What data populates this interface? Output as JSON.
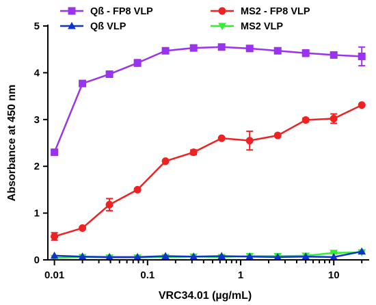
{
  "chart_data": {
    "type": "line",
    "title": "",
    "xlabel": "VRC34.01 (µg/mL)",
    "ylabel": "Absorbance at 450 nm",
    "xscale": "log",
    "xlim": [
      0.0085,
      24
    ],
    "ylim": [
      0,
      5
    ],
    "x_ticks": [
      0.01,
      0.1,
      1,
      10
    ],
    "x_tick_labels": [
      "0.01",
      "0.1",
      "1",
      "10"
    ],
    "y_ticks": [
      0,
      1,
      2,
      3,
      4,
      5
    ],
    "y_tick_labels": [
      "0",
      "1",
      "2",
      "3",
      "4",
      "5"
    ],
    "grid": false,
    "legend_position": "top",
    "x": [
      0.01,
      0.02,
      0.039,
      0.078,
      0.156,
      0.3125,
      0.625,
      1.25,
      2.5,
      5,
      10,
      20
    ],
    "series": [
      {
        "name": "Qß - FP8 VLP",
        "color": "#9933ee",
        "marker": "square",
        "values": [
          2.3,
          3.77,
          3.97,
          4.21,
          4.47,
          4.53,
          4.55,
          4.52,
          4.47,
          4.42,
          4.38,
          4.35
        ],
        "errors": [
          0.02,
          0.06,
          0.03,
          0.07,
          0.03,
          0.02,
          0.02,
          0.02,
          0.02,
          0.07,
          0.03,
          0.2
        ]
      },
      {
        "name": "MS2 - FP8 VLP",
        "color": "#ee2222",
        "marker": "circle",
        "values": [
          0.5,
          0.68,
          1.18,
          1.5,
          2.11,
          2.3,
          2.6,
          2.55,
          2.66,
          2.99,
          3.02,
          3.31
        ],
        "errors": [
          0.08,
          0.02,
          0.13,
          0.02,
          0.02,
          0.05,
          0.02,
          0.2,
          0.02,
          0.04,
          0.1,
          0.02
        ]
      },
      {
        "name": "Qß VLP",
        "color": "#1133cc",
        "marker": "triangle-up",
        "values": [
          0.09,
          0.07,
          0.06,
          0.06,
          0.08,
          0.07,
          0.08,
          0.07,
          0.06,
          0.07,
          0.06,
          0.18
        ],
        "errors": [
          0,
          0,
          0,
          0,
          0,
          0,
          0,
          0,
          0,
          0,
          0,
          0
        ]
      },
      {
        "name": "MS2 VLP",
        "color": "#33ee33",
        "marker": "triangle-down",
        "values": [
          0.04,
          0.06,
          0.05,
          0.05,
          0.06,
          0.07,
          0.06,
          0.08,
          0.08,
          0.09,
          0.15,
          0.16
        ],
        "errors": [
          0,
          0,
          0,
          0,
          0,
          0,
          0,
          0,
          0,
          0,
          0.02,
          0.02
        ]
      }
    ],
    "legend": {
      "entries": [
        "Qß - FP8 VLP",
        "MS2 - FP8 VLP",
        "Qß VLP",
        "MS2 VLP"
      ]
    }
  }
}
